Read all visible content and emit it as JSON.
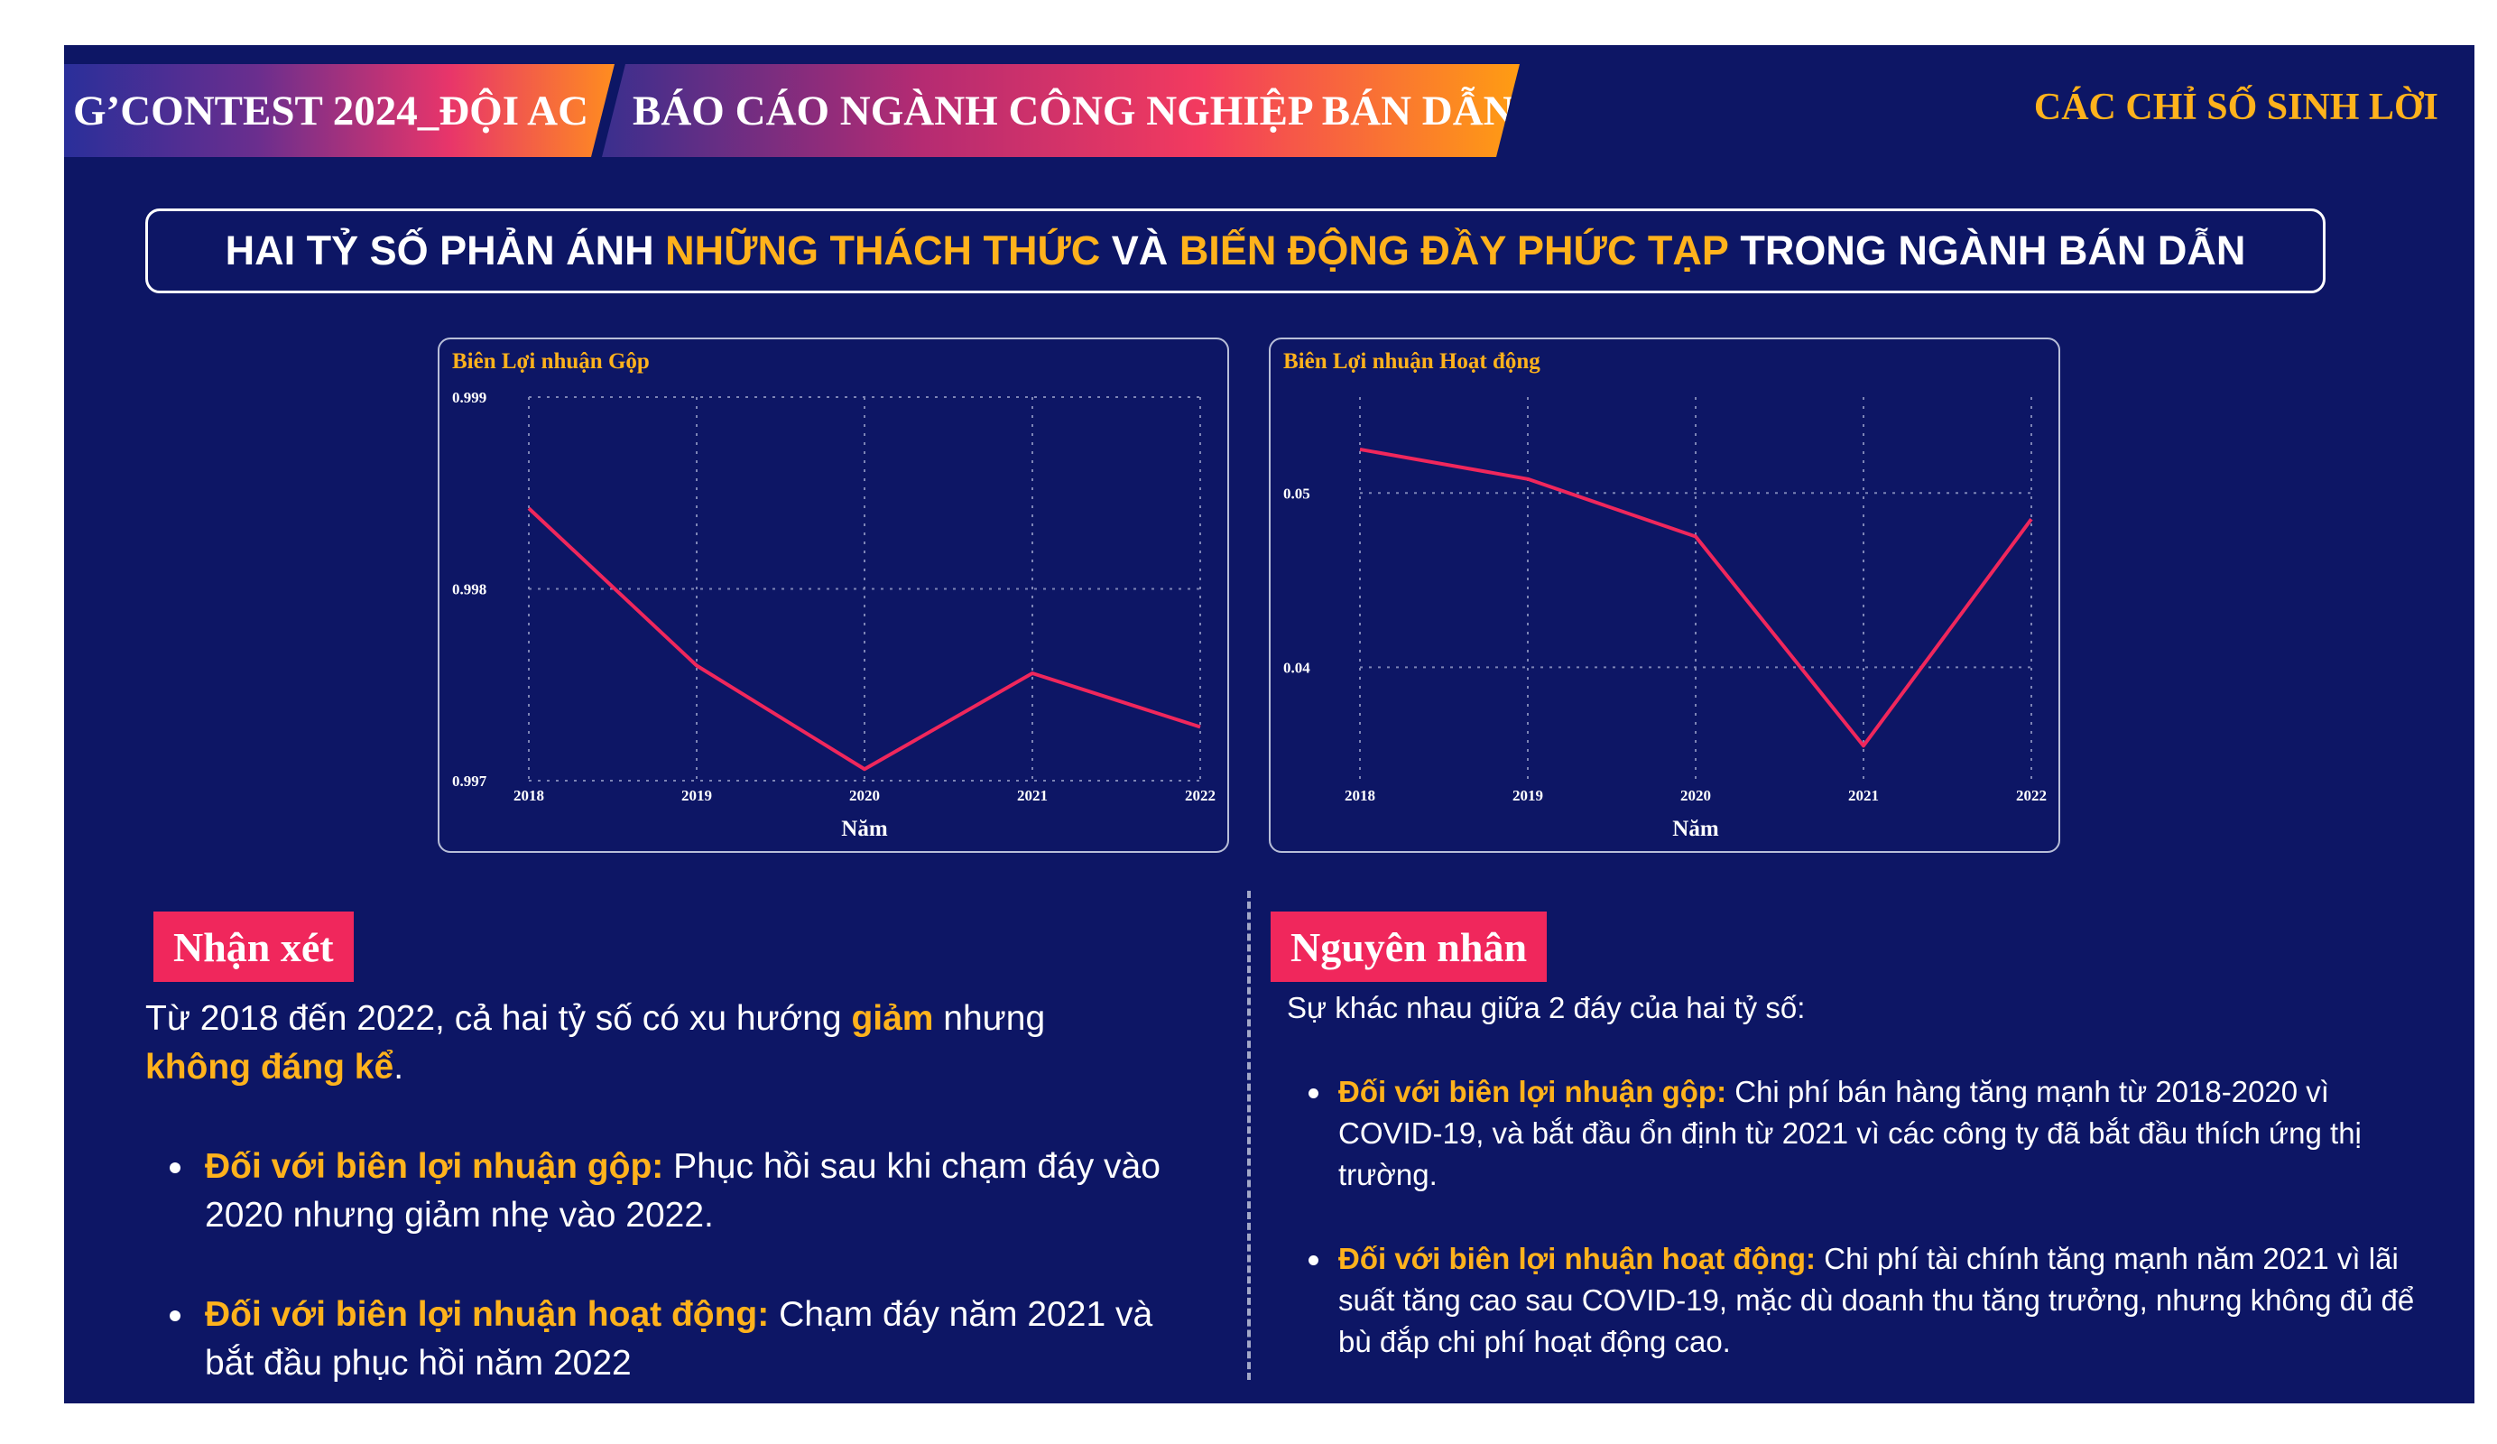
{
  "header": {
    "tag_left": "G’CONTEST 2024_ĐỘI AC",
    "tag_right": "BÁO CÁO NGÀNH CÔNG NGHIỆP BÁN DẪN",
    "section": "CÁC CHỈ SỐ SINH LỜI"
  },
  "headline": {
    "part1": "HAI TỶ SỐ PHẢN ÁNH ",
    "highlight1": "NHỮNG THÁCH THỨC",
    "part2": " VÀ ",
    "highlight2": "BIẾN ĐỘNG ĐẦY PHỨC TẠP",
    "part3": " TRONG NGÀNH BÁN DẪN"
  },
  "colors": {
    "background": "#0d1665",
    "accent": "#ffb21c",
    "line": "#f0275c",
    "badge": "#f0275c"
  },
  "chart_data": [
    {
      "type": "line",
      "title": "Biên Lợi nhuận Gộp",
      "xlabel": "Năm",
      "ylabel": "",
      "categories": [
        "2018",
        "2019",
        "2020",
        "2021",
        "2022"
      ],
      "values": [
        0.99842,
        0.9976,
        0.99706,
        0.99756,
        0.99728
      ],
      "ylim": [
        0.997,
        0.999
      ],
      "yticks": [
        "0.997",
        "0.998",
        "0.999"
      ],
      "grid": true
    },
    {
      "type": "line",
      "title": "Biên Lợi nhuận Hoạt động",
      "xlabel": "Năm",
      "ylabel": "",
      "categories": [
        "2018",
        "2019",
        "2020",
        "2021",
        "2022"
      ],
      "values": [
        0.0525,
        0.0508,
        0.0475,
        0.0355,
        0.0485
      ],
      "ylim": [
        0.0335,
        0.0555
      ],
      "yticks": [
        "0.04",
        "0.05"
      ],
      "grid": true
    }
  ],
  "left": {
    "badge": "Nhận xét",
    "intro_a": "Từ 2018 đến 2022, cả hai tỷ số có xu hướng ",
    "intro_b": "giảm",
    "intro_c": " nhưng ",
    "intro_d": "không đáng kể",
    "intro_e": ".",
    "items": [
      {
        "lead": "Đối với biên lợi nhuận gộp:",
        "text": " Phục hồi sau khi chạm đáy vào 2020 nhưng giảm nhẹ vào 2022."
      },
      {
        "lead": "Đối với biên lợi nhuận hoạt động:",
        "text": " Chạm đáy năm 2021 và bắt đầu phục hồi năm 2022"
      }
    ]
  },
  "right": {
    "badge": "Nguyên nhân",
    "intro": "Sự khác nhau giữa 2 đáy của hai tỷ số:",
    "items": [
      {
        "lead": "Đối với biên lợi nhuận gộp:",
        "text": " Chi phí bán hàng tăng mạnh từ 2018-2020 vì COVID-19, và bắt đầu ổn định từ 2021 vì các công ty đã bắt đầu thích ứng thị trường."
      },
      {
        "lead": "Đối với biên lợi nhuận hoạt động:",
        "text": " Chi phí tài chính tăng mạnh năm 2021 vì lãi suất tăng cao sau COVID-19, mặc dù doanh thu tăng trưởng, nhưng không đủ để bù đắp chi phí hoạt động cao."
      }
    ]
  }
}
